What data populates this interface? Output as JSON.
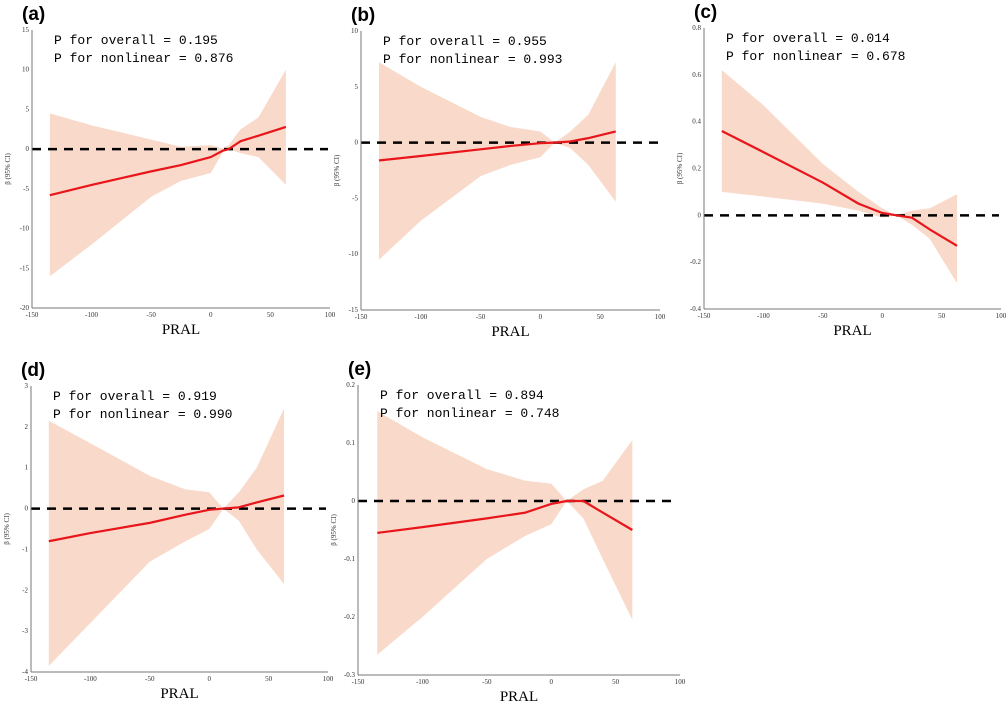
{
  "colors": {
    "line": "#e8161b",
    "band": "#f9d9c9",
    "reference": "#000000",
    "axis": "#777777"
  },
  "chart_data": [
    {
      "type": "line",
      "panel": "(a)",
      "xlabel": "PRAL",
      "ylabel": "β (95% CI)",
      "xlim": [
        -150,
        100
      ],
      "ylim": [
        -20,
        15
      ],
      "xticks": [
        -150,
        -100,
        -50,
        0,
        50,
        100
      ],
      "yticks": [
        -20,
        -15,
        -10,
        -5,
        0,
        5,
        10,
        15
      ],
      "annotations": [
        "P for overall = 0.195",
        "P for nonlinear = 0.876"
      ],
      "reference_line": 0,
      "x": [
        -135,
        -100,
        -50,
        -25,
        0,
        10,
        15,
        25,
        40,
        63
      ],
      "y": [
        -5.8,
        -4.5,
        -2.8,
        -2,
        -1,
        -0.2,
        0,
        1,
        1.7,
        2.8
      ],
      "upper": [
        4.5,
        3,
        1.2,
        0.3,
        0.5,
        0.1,
        0.5,
        2.5,
        4,
        10
      ],
      "lower": [
        -16,
        -12,
        -6,
        -4,
        -3,
        -0.4,
        0,
        -0.5,
        -1,
        -4.5
      ]
    },
    {
      "type": "line",
      "panel": "(b)",
      "xlabel": "PRAL",
      "ylabel": "β (95% CI)",
      "xlim": [
        -150,
        100
      ],
      "ylim": [
        -15,
        10
      ],
      "xticks": [
        -150,
        -100,
        -50,
        0,
        50,
        100
      ],
      "yticks": [
        -15,
        -10,
        -5,
        0,
        5,
        10
      ],
      "annotations": [
        "P for overall = 0.955",
        "P for nonlinear = 0.993"
      ],
      "reference_line": 0,
      "x": [
        -135,
        -100,
        -50,
        -25,
        0,
        12,
        25,
        40,
        63
      ],
      "y": [
        -1.6,
        -1.2,
        -0.6,
        -0.3,
        -0.05,
        0,
        0.1,
        0.4,
        1
      ],
      "upper": [
        7.2,
        5,
        2.3,
        1.4,
        1,
        0,
        1,
        2.5,
        7.2
      ],
      "lower": [
        -10.5,
        -7,
        -3,
        -2,
        -1.3,
        0,
        -0.5,
        -2,
        -5.3
      ]
    },
    {
      "type": "line",
      "panel": "(c)",
      "xlabel": "PRAL",
      "ylabel": "β (95% CI)",
      "xlim": [
        -150,
        100
      ],
      "ylim": [
        -0.4,
        0.8
      ],
      "xticks": [
        -150,
        -100,
        -50,
        0,
        50,
        100
      ],
      "yticks": [
        -0.4,
        -0.2,
        0.0,
        0.2,
        0.4,
        0.6,
        0.8
      ],
      "annotations": [
        "P for overall = 0.014",
        "P for nonlinear = 0.678"
      ],
      "reference_line": 0,
      "x": [
        -135,
        -100,
        -50,
        -20,
        0,
        12,
        25,
        40,
        63
      ],
      "y": [
        0.36,
        0.27,
        0.14,
        0.05,
        0.01,
        0,
        -0.01,
        -0.06,
        -0.13
      ],
      "upper": [
        0.62,
        0.47,
        0.22,
        0.1,
        0.03,
        0,
        0.02,
        0.03,
        0.09
      ],
      "lower": [
        0.1,
        0.08,
        0.05,
        0.02,
        -0.01,
        0,
        -0.04,
        -0.1,
        -0.29
      ]
    },
    {
      "type": "line",
      "panel": "(d)",
      "xlabel": "PRAL",
      "ylabel": "β (95% CI)",
      "xlim": [
        -150,
        100
      ],
      "ylim": [
        -4,
        3
      ],
      "xticks": [
        -150,
        -100,
        -50,
        0,
        50,
        100
      ],
      "yticks": [
        -4,
        -3,
        -2,
        -1,
        0,
        1,
        2,
        3
      ],
      "annotations": [
        "P for overall = 0.919",
        "P for nonlinear = 0.990"
      ],
      "reference_line": 0,
      "x": [
        -135,
        -100,
        -50,
        -20,
        0,
        12,
        25,
        40,
        63
      ],
      "y": [
        -0.8,
        -0.6,
        -0.35,
        -0.15,
        -0.03,
        0,
        0.03,
        0.15,
        0.32
      ],
      "upper": [
        2.15,
        1.6,
        0.8,
        0.47,
        0.4,
        0,
        0.4,
        1,
        2.45
      ],
      "lower": [
        -3.85,
        -2.8,
        -1.3,
        -0.8,
        -0.5,
        0,
        -0.3,
        -1,
        -1.85
      ]
    },
    {
      "type": "line",
      "panel": "(e)",
      "xlabel": "PRAL",
      "ylabel": "β (95% CI)",
      "xlim": [
        -150,
        100
      ],
      "ylim": [
        -0.3,
        0.2
      ],
      "xticks": [
        -150,
        -100,
        -50,
        0,
        50,
        100
      ],
      "yticks": [
        -0.3,
        -0.2,
        -0.1,
        0.0,
        0.1,
        0.2
      ],
      "annotations": [
        "P for overall = 0.894",
        "P for nonlinear = 0.748"
      ],
      "reference_line": 0,
      "x": [
        -135,
        -100,
        -50,
        -20,
        0,
        12,
        25,
        40,
        63
      ],
      "y": [
        -0.055,
        -0.045,
        -0.03,
        -0.02,
        -0.005,
        0,
        0,
        -0.02,
        -0.05
      ],
      "upper": [
        0.155,
        0.11,
        0.055,
        0.035,
        0.03,
        0,
        0.02,
        0.035,
        0.105
      ],
      "lower": [
        -0.265,
        -0.2,
        -0.1,
        -0.06,
        -0.04,
        0,
        -0.03,
        -0.1,
        -0.205
      ]
    }
  ]
}
